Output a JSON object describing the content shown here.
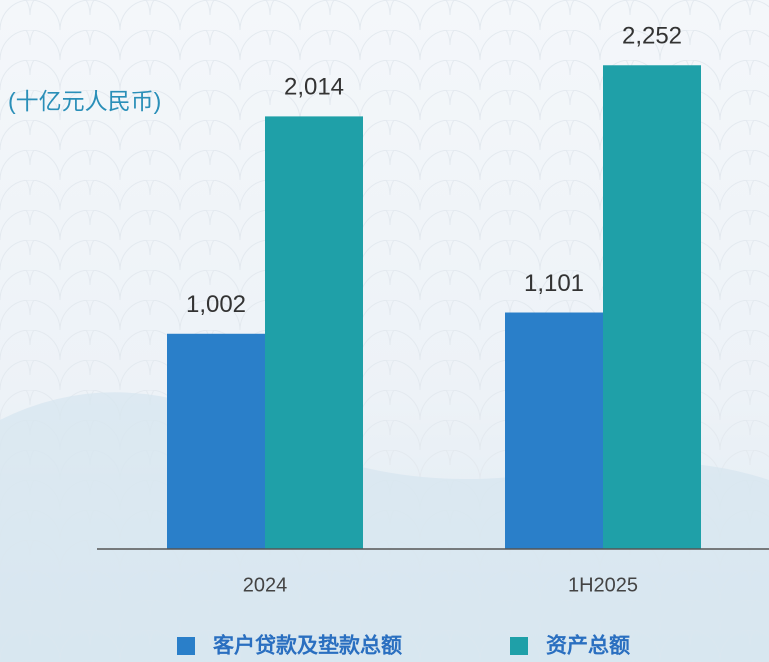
{
  "chart_data": {
    "type": "bar",
    "unit_label": "(十亿元人民币)",
    "categories": [
      "2024",
      "1H2025"
    ],
    "series": [
      {
        "name": "客户贷款及垫款总额",
        "color": "#2a7fc9",
        "values": [
          1002,
          1101
        ],
        "value_labels": [
          "1,002",
          "1,101"
        ]
      },
      {
        "name": "资产总额",
        "color": "#1fa0a8",
        "values": [
          2014,
          2252
        ],
        "value_labels": [
          "2,014",
          "2,252"
        ]
      }
    ],
    "ylim": [
      0,
      2500
    ]
  }
}
